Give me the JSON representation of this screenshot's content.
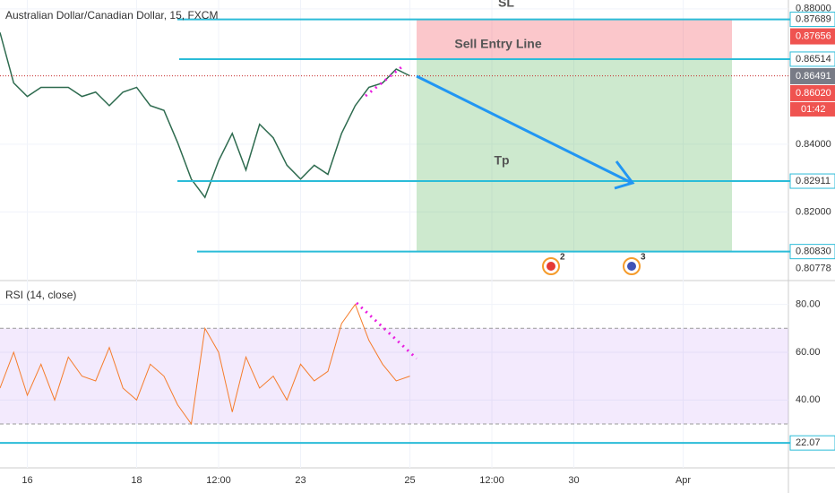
{
  "chart_data": [
    {
      "type": "line",
      "title": "Australian Dollar/Canadian Dollar, 15, FXCM",
      "color": "#2e6b4f",
      "categories": [
        null,
        null,
        "16",
        null,
        null,
        null,
        null,
        null,
        null,
        null,
        "18",
        null,
        null,
        null,
        null,
        null,
        "12:00",
        null,
        null,
        null,
        null,
        null,
        "23",
        null,
        null,
        null,
        null,
        null,
        null,
        null,
        "25",
        null,
        null,
        null,
        null,
        null,
        "12:00",
        null,
        null,
        null,
        null,
        null,
        "30",
        null,
        null,
        null,
        null,
        null,
        null,
        null,
        "Apr",
        null,
        null,
        null,
        null,
        null,
        null,
        null
      ],
      "values": [
        0.873,
        0.8581,
        0.8541,
        0.8568,
        0.8568,
        0.8568,
        0.8541,
        0.8554,
        0.8514,
        0.8554,
        0.8568,
        0.8514,
        0.85,
        0.8405,
        0.8297,
        0.8243,
        0.8351,
        0.8432,
        0.8324,
        0.8459,
        0.8419,
        0.8338,
        0.8297,
        0.8338,
        0.8311,
        0.8432,
        0.8514,
        0.8568,
        0.8581,
        0.8622,
        0.8602,
        null,
        null,
        null,
        null,
        null,
        null,
        null,
        null,
        null,
        null,
        null,
        null,
        null,
        null,
        null,
        null,
        null,
        null,
        null,
        null,
        null,
        null,
        null,
        null,
        null,
        null,
        null
      ],
      "ylim": [
        0.8,
        0.8826
      ],
      "yticks": [
        {
          "value": 0.88,
          "label": "0.88000"
        },
        {
          "value": 0.84,
          "label": "0.84000"
        },
        {
          "value": 0.82,
          "label": "0.82000"
        }
      ],
      "hlines": [
        {
          "value": 0.87689,
          "label": "0.87689"
        },
        {
          "value": 0.86514,
          "label": "0.86514"
        },
        {
          "value": 0.82911,
          "label": "0.82911"
        },
        {
          "value": 0.8083,
          "label": "0.80830"
        }
      ],
      "line_color": "#2bbcd8",
      "price_tags": [
        {
          "value": 0.87656,
          "label": "0.87656",
          "color": "#ef5350"
        },
        {
          "value": 0.86491,
          "label": "0.86491",
          "color": "#787b86"
        },
        {
          "value": 0.8602,
          "label": "0.86020",
          "color": "#ef5350"
        },
        {
          "value": 0.80778,
          "label": "0.80778",
          "color": "#ffffff"
        }
      ],
      "countdown": "01:42",
      "annotations": [
        "SL",
        "Sell Entry Line",
        "Tp"
      ],
      "events": [
        "2",
        "3"
      ]
    },
    {
      "type": "line",
      "title": "RSI (14, close)",
      "color": "#f57c2b",
      "values": [
        45,
        60,
        42,
        55,
        40,
        58,
        50,
        48,
        62,
        45,
        40,
        55,
        50,
        38,
        30,
        70,
        60,
        35,
        58,
        45,
        50,
        40,
        55,
        48,
        52,
        72,
        80,
        65,
        55,
        48,
        50,
        null,
        null,
        null,
        null,
        null,
        null,
        null,
        null,
        null,
        null,
        null,
        null,
        null,
        null,
        null,
        null,
        null,
        null,
        null,
        null,
        null,
        null,
        null,
        null,
        null,
        null,
        null
      ],
      "ylim": [
        12,
        89.6
      ],
      "yticks": [
        {
          "value": 80,
          "label": "80.00"
        },
        {
          "value": 60,
          "label": "60.00"
        },
        {
          "value": 40,
          "label": "40.00"
        }
      ],
      "band": [
        30,
        70
      ],
      "hlines": [
        {
          "value": 22.07,
          "label": "22.07"
        }
      ]
    }
  ]
}
